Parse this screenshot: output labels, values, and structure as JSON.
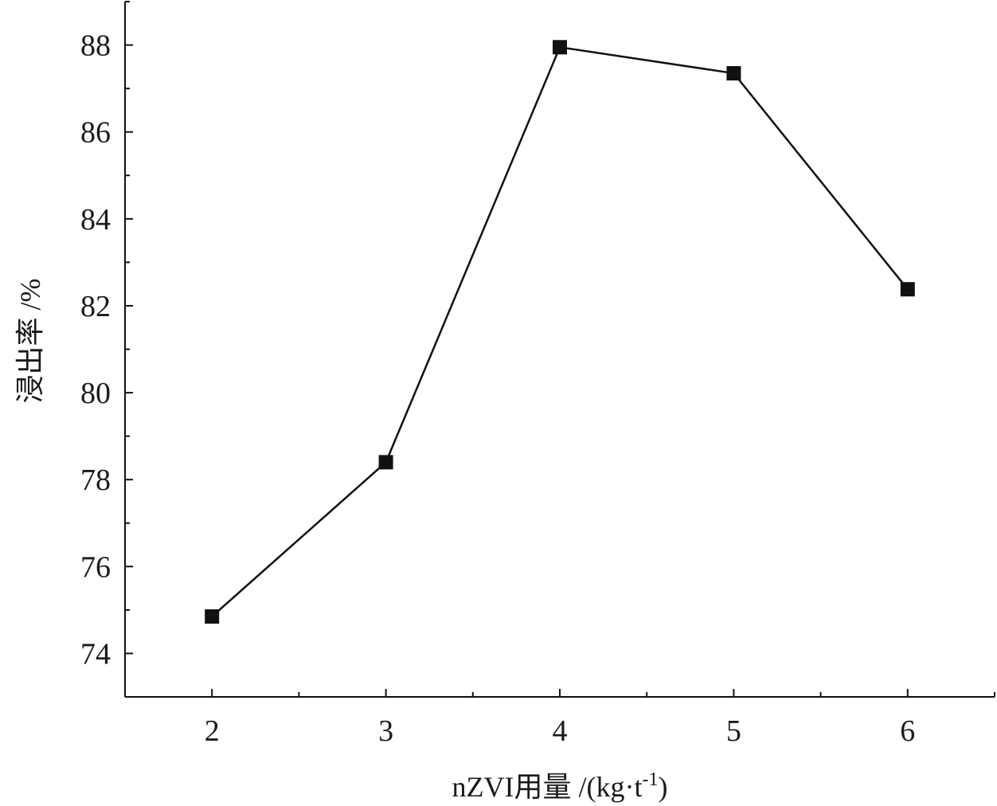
{
  "chart_data": {
    "type": "line",
    "x": [
      2,
      3,
      4,
      5,
      6
    ],
    "series": [
      {
        "values": [
          74.85,
          78.4,
          87.95,
          87.35,
          82.38
        ],
        "marker": "square",
        "color": "#111111"
      }
    ],
    "xlabel": "nZVI用量 /(kg·t",
    "xlabel_sup": "-1",
    "xlabel_tail": ")",
    "ylabel": "浸出率 /%",
    "xlim": [
      1.5,
      6.5
    ],
    "ylim": [
      73,
      89
    ],
    "xticks": [
      "2",
      "3",
      "4",
      "5",
      "6"
    ],
    "yticks": [
      "74",
      "76",
      "78",
      "80",
      "82",
      "84",
      "86",
      "88"
    ],
    "xtick_values": [
      2,
      3,
      4,
      5,
      6
    ],
    "ytick_values": [
      74,
      76,
      78,
      80,
      82,
      84,
      86,
      88
    ],
    "grid": false,
    "legend": "none"
  }
}
